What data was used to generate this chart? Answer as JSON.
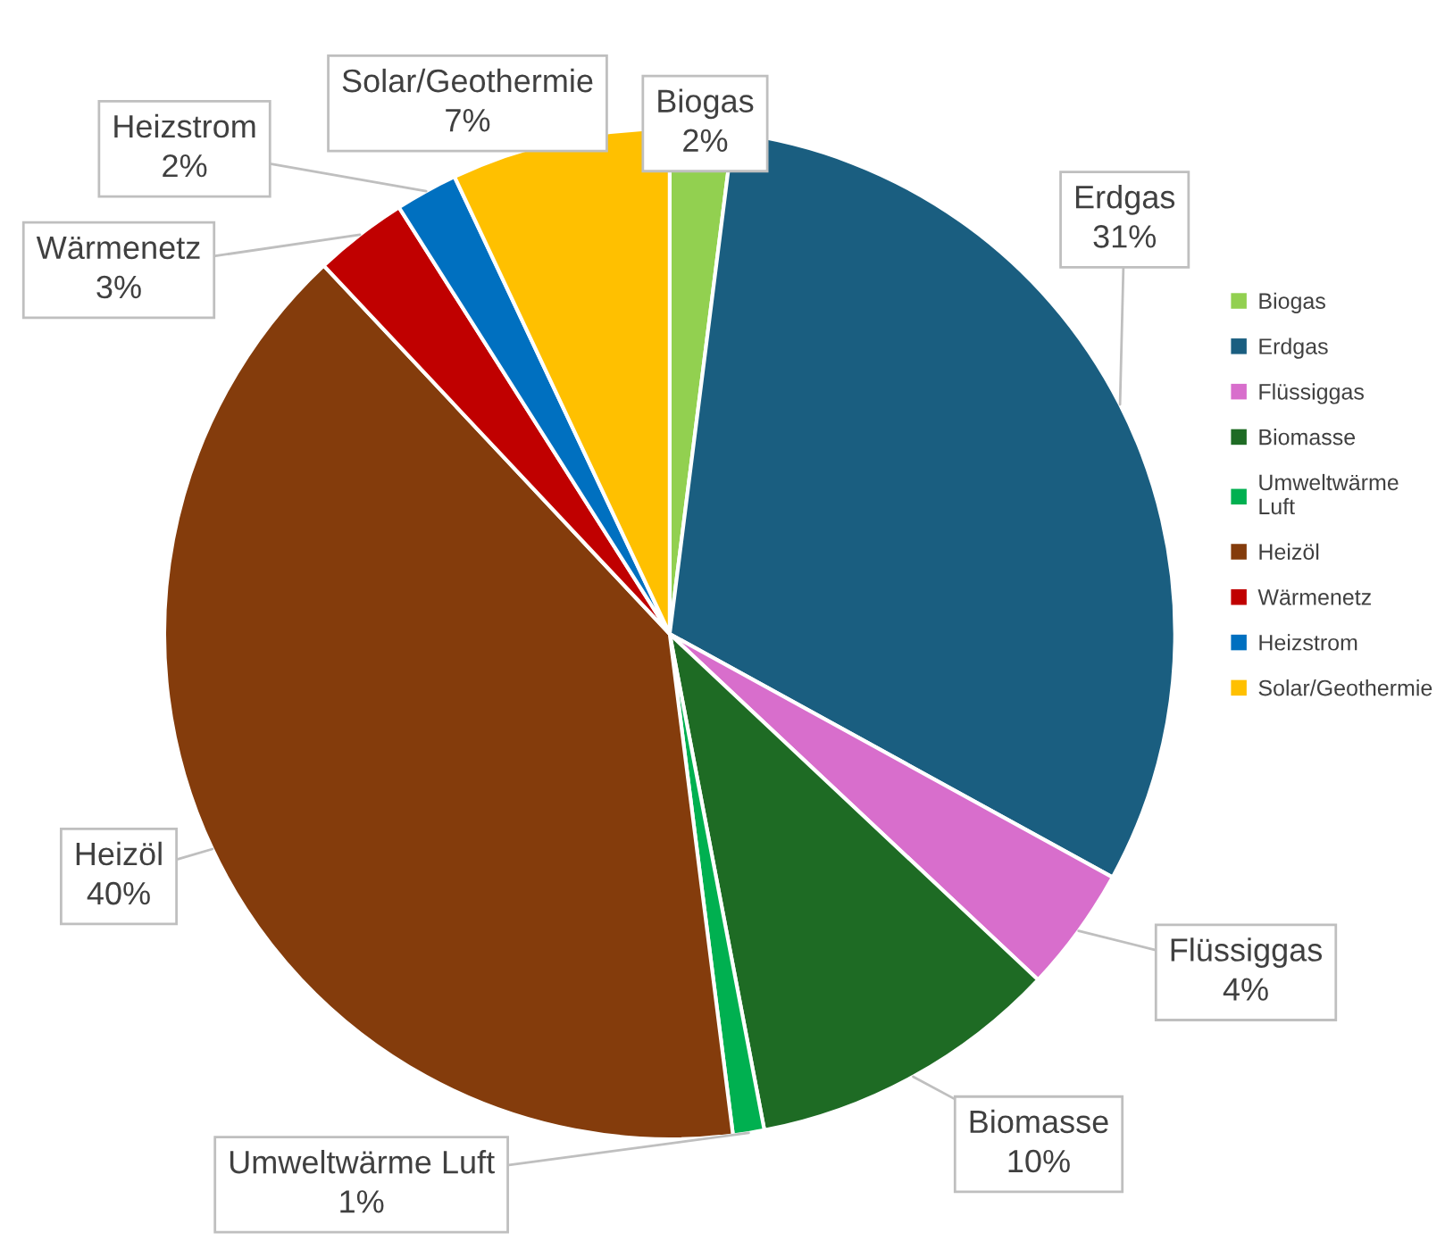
{
  "chart_data": {
    "type": "pie",
    "categories": [
      "Biogas",
      "Erdgas",
      "Flüssiggas",
      "Biomasse",
      "Umweltwärme Luft",
      "Heizöl",
      "Wärmenetz",
      "Heizstrom",
      "Solar/Geothermie"
    ],
    "values": [
      2,
      31,
      4,
      10,
      1,
      40,
      3,
      2,
      7
    ],
    "colors": [
      "#92d050",
      "#1a5e80",
      "#d86ecc",
      "#1e6b24",
      "#00b050",
      "#843c0c",
      "#c00000",
      "#0070c0",
      "#ffc000"
    ],
    "value_labels": [
      "2%",
      "31%",
      "4%",
      "10%",
      "1%",
      "40%",
      "3%",
      "2%",
      "7%"
    ],
    "legend": "right"
  }
}
